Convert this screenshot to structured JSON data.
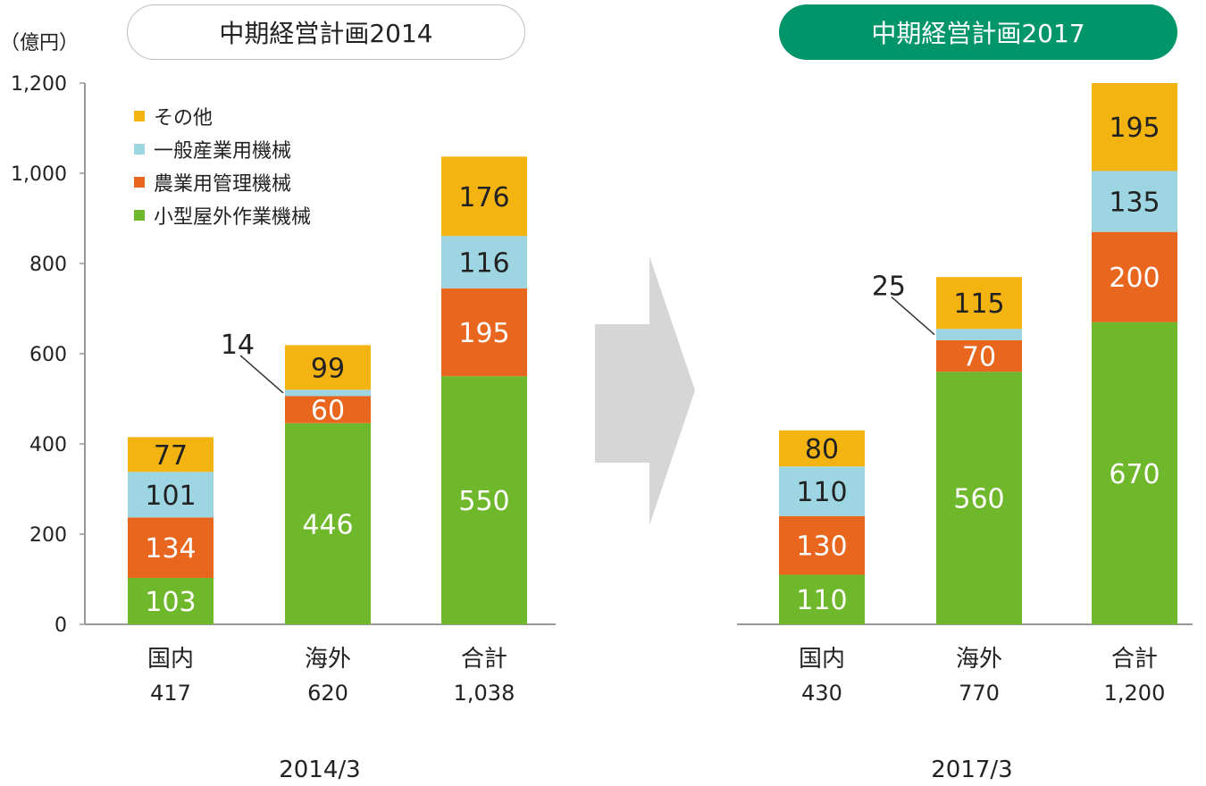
{
  "unit_label": "（億円）",
  "left_title": "中期経営計画2014",
  "right_title": "中期経営計画2017",
  "colors": {
    "small_outdoor": "#6fb82c",
    "agri_mgmt": "#e8661e",
    "general_industrial": "#9dd6e2",
    "other": "#f3b412",
    "axis": "#999999",
    "arrow": "#d6d6d6",
    "title_fill": "#00966a"
  },
  "chart_data": [
    {
      "type": "bar",
      "stacked": true,
      "period": "2014/3",
      "categories": [
        "国内",
        "海外",
        "合計"
      ],
      "category_totals": [
        "417",
        "620",
        "1,038"
      ],
      "ylim": [
        0,
        1200
      ],
      "yticks": [
        "0",
        "200",
        "400",
        "600",
        "800",
        "1,000",
        "1,200"
      ],
      "legend_position": "top-left",
      "series": [
        {
          "name": "小型屋外作業機械",
          "values": [
            103,
            446,
            550
          ]
        },
        {
          "name": "農業用管理機械",
          "values": [
            134,
            60,
            195
          ]
        },
        {
          "name": "一般産業用機械",
          "values": [
            101,
            14,
            116
          ]
        },
        {
          "name": "その他",
          "values": [
            77,
            99,
            176
          ]
        }
      ],
      "callout": {
        "category_index": 1,
        "series_index": 2,
        "label": "14"
      }
    },
    {
      "type": "bar",
      "stacked": true,
      "period": "2017/3",
      "categories": [
        "国内",
        "海外",
        "合計"
      ],
      "category_totals": [
        "430",
        "770",
        "1,200"
      ],
      "ylim": [
        0,
        1200
      ],
      "series": [
        {
          "name": "小型屋外作業機械",
          "values": [
            110,
            560,
            670
          ]
        },
        {
          "name": "農業用管理機械",
          "values": [
            130,
            70,
            200
          ]
        },
        {
          "name": "一般産業用機械",
          "values": [
            110,
            25,
            135
          ]
        },
        {
          "name": "その他",
          "values": [
            80,
            115,
            195
          ]
        }
      ],
      "callout": {
        "category_index": 1,
        "series_index": 2,
        "label": "25"
      }
    }
  ]
}
